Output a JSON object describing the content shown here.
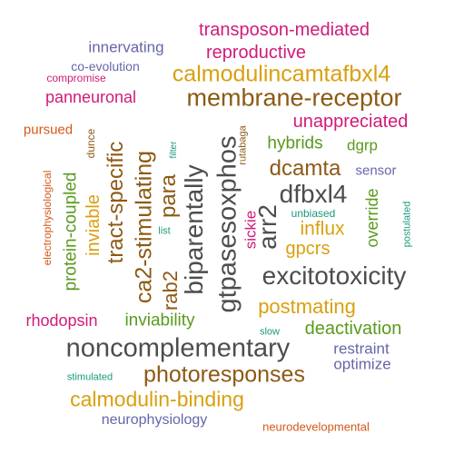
{
  "colors": {
    "gray": "#4d4d4d",
    "brown": "#8c5a14",
    "gold": "#d9a010",
    "magenta": "#d11a7a",
    "green": "#5a9a1e",
    "purple": "#6666aa",
    "orange": "#d4581a",
    "teal": "#1a9a7a"
  },
  "words": [
    "transposon-mediated",
    "innervating",
    "reproductive",
    "co-evolution",
    "compromise",
    "calmodulincamtafbxl4",
    "panneuronal",
    "membrane-receptor",
    "pursued",
    "unappreciated",
    "dunce",
    "filter",
    "rutabaga",
    "hybrids",
    "dgrp",
    "dcamta",
    "sensor",
    "electrophysiological",
    "protein-coupled",
    "inviable",
    "tract-specific",
    "ca2-stimulating",
    "rab2",
    "para",
    "biparentally",
    "gtpasesoxphos",
    "arr2",
    "sickie",
    "dfbxl4",
    "unbiased",
    "list",
    "influx",
    "gpcrs",
    "override",
    "postulated",
    "excitotoxicity",
    "postmating",
    "rhodopsin",
    "inviability",
    "slow",
    "deactivation",
    "noncomplementary",
    "restraint",
    "optimize",
    "stimulated",
    "photoresponses",
    "calmodulin-binding",
    "neurophysiology",
    "neurodevelopmental"
  ]
}
